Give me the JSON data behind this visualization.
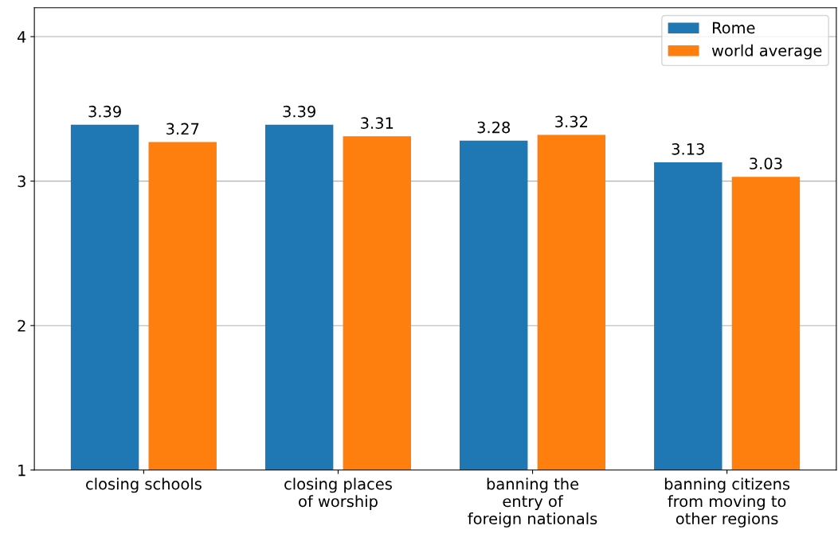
{
  "chart_data": {
    "type": "bar",
    "categories": [
      "closing schools",
      "closing places\nof worship",
      "banning the\nentry of\nforeign nationals",
      "banning citizens\nfrom moving to\nother regions"
    ],
    "series": [
      {
        "name": "Rome",
        "color": "#1f77b4",
        "values": [
          3.39,
          3.39,
          3.28,
          3.13
        ]
      },
      {
        "name": "world average",
        "color": "#ff7f0e",
        "values": [
          3.27,
          3.31,
          3.32,
          3.03
        ]
      }
    ],
    "ylim": [
      1,
      4.2
    ],
    "yticks": [
      1,
      2,
      3,
      4
    ],
    "grid": "y",
    "legend": "top right",
    "data_labels": true
  }
}
